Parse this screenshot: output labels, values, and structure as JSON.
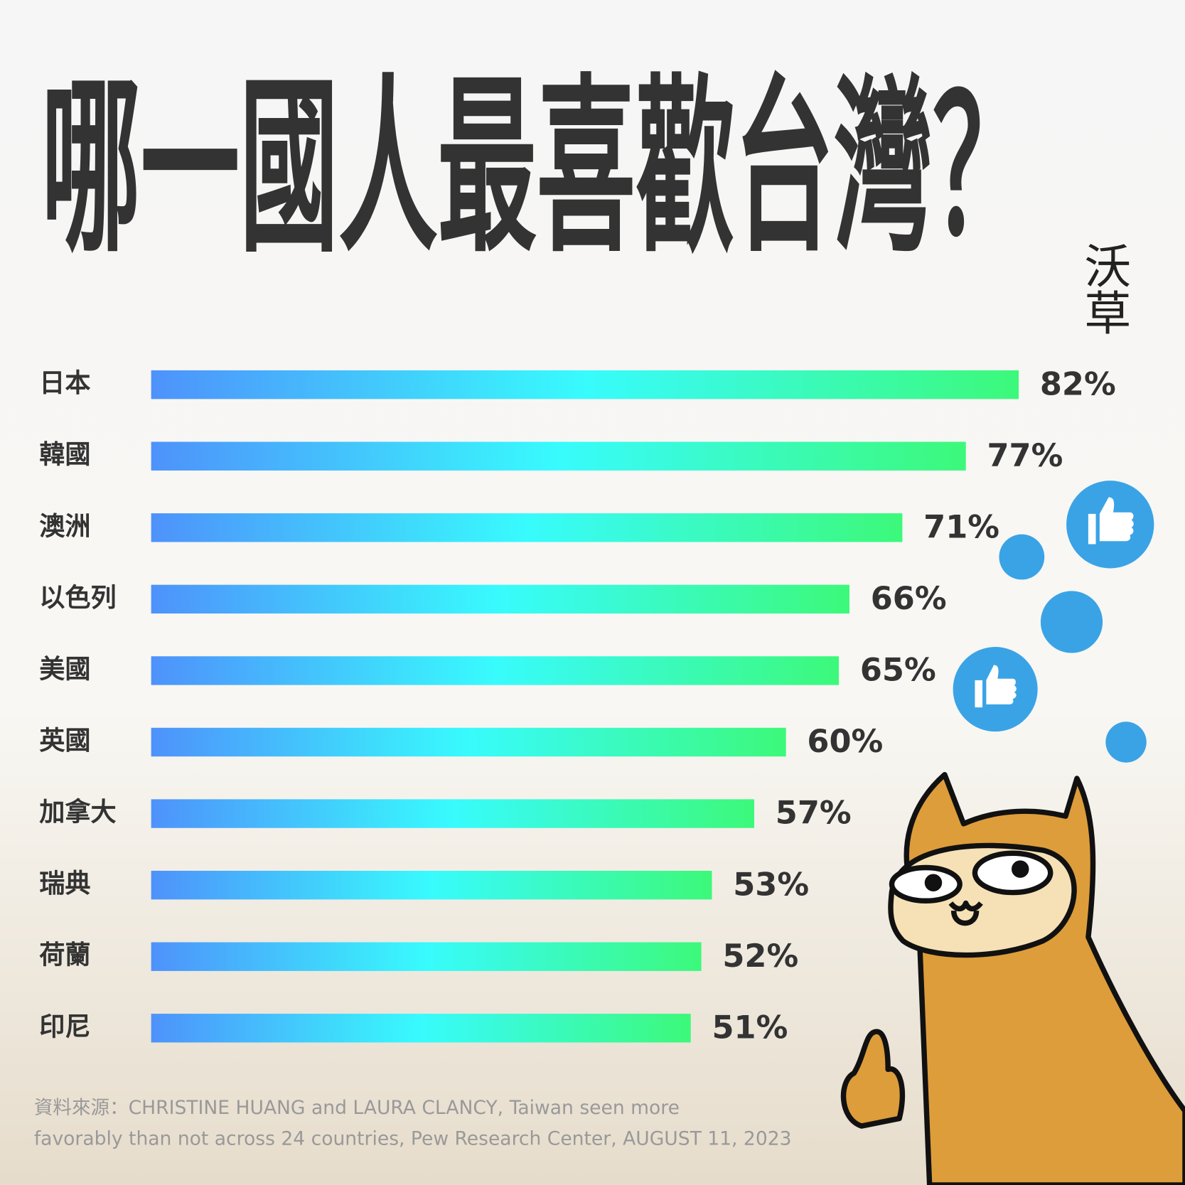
{
  "chart_data": {
    "type": "bar",
    "orientation": "horizontal",
    "title": "哪一國人最喜歡台灣？",
    "logo": "沃草",
    "categories": [
      "日本",
      "韓國",
      "澳洲",
      "以色列",
      "美國",
      "英國",
      "加拿大",
      "瑞典",
      "荷蘭",
      "印尼"
    ],
    "values": [
      82,
      77,
      71,
      66,
      65,
      60,
      57,
      53,
      52,
      51
    ],
    "value_labels": [
      "82%",
      "77%",
      "71%",
      "66%",
      "65%",
      "60%",
      "57%",
      "53%",
      "52%",
      "51%"
    ],
    "colors": [
      "#4e92fb",
      "#38fbfd",
      "#3cf97a"
    ],
    "source": [
      "資料來源：CHRISTINE HUANG and LAURA CLANCY, Taiwan seen more",
      "favorably than not across 24 countries, Pew Research Center, AUGUST 11, 2023"
    ]
  }
}
